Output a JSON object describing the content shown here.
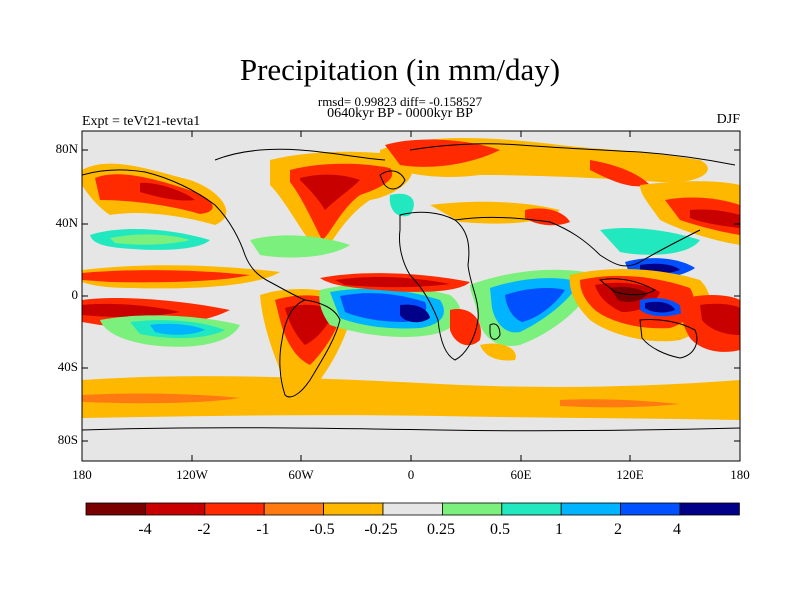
{
  "title": "Precipitation (in mm/day)",
  "stats": "rmsd= 0.99823 diff= -0.158527",
  "period": "0640kyr BP - 0000kyr BP",
  "experiment": "Expt = teVt21-tevta1",
  "season": "DJF",
  "lat_labels": [
    "80N",
    "40N",
    "0",
    "40S",
    "80S"
  ],
  "lon_labels": [
    "180",
    "120W",
    "60W",
    "0",
    "60E",
    "120E",
    "180"
  ],
  "colorbar": {
    "labels": [
      "-4",
      "-2",
      "-1",
      "-0.5",
      "-0.25",
      "0.25",
      "0.5",
      "1",
      "2",
      "4"
    ],
    "colors": [
      "#7a0000",
      "#c80000",
      "#ff2a00",
      "#ff7a10",
      "#ffb800",
      "#e6e6e6",
      "#7cf07c",
      "#22e8c0",
      "#00b4ff",
      "#0050ff",
      "#000088"
    ]
  }
}
